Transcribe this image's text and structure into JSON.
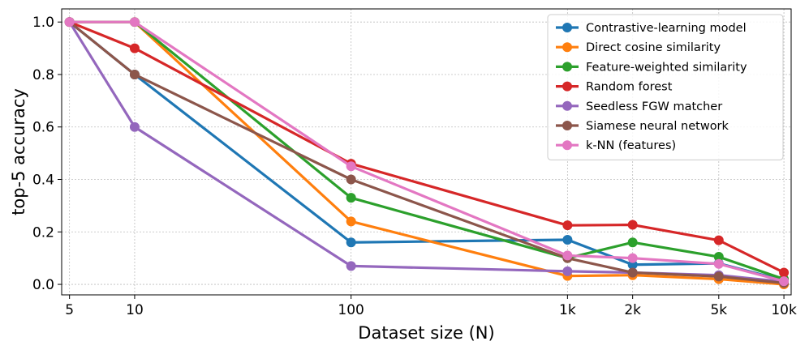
{
  "chart_data": {
    "type": "line",
    "title": "",
    "xlabel": "Dataset size (N)",
    "ylabel": "top-5 accuracy",
    "xscale": "log",
    "x": [
      5,
      10,
      100,
      1000,
      2000,
      5000,
      10000
    ],
    "xtick_labels": [
      "5",
      "10",
      "100",
      "1k",
      "2k",
      "5k",
      "10k"
    ],
    "ylim": [
      -0.04,
      1.05
    ],
    "yticks": [
      0.0,
      0.2,
      0.4,
      0.6,
      0.8,
      1.0
    ],
    "ytick_labels": [
      "0.0",
      "0.2",
      "0.4",
      "0.6",
      "0.8",
      "1.0"
    ],
    "grid": true,
    "legend_position": "top-right",
    "series": [
      {
        "name": "Contrastive-learning model",
        "color": "#1f77b4",
        "values": [
          1.0,
          0.8,
          0.16,
          0.17,
          0.075,
          0.08,
          0.015
        ]
      },
      {
        "name": "Direct cosine similarity",
        "color": "#ff7f0e",
        "values": [
          1.0,
          1.0,
          0.24,
          0.032,
          0.035,
          0.02,
          0.0
        ]
      },
      {
        "name": "Feature-weighted similarity",
        "color": "#2ca02c",
        "values": [
          1.0,
          1.0,
          0.33,
          0.1,
          0.16,
          0.105,
          0.02
        ]
      },
      {
        "name": "Random forest",
        "color": "#d62728",
        "values": [
          1.0,
          0.9,
          0.46,
          0.225,
          0.227,
          0.168,
          0.045
        ]
      },
      {
        "name": "Seedless FGW matcher",
        "color": "#9467bd",
        "values": [
          1.0,
          0.6,
          0.07,
          0.05,
          0.045,
          0.035,
          0.01
        ]
      },
      {
        "name": "Siamese neural network",
        "color": "#8c564b",
        "values": [
          1.0,
          0.8,
          0.4,
          0.1,
          0.045,
          0.03,
          0.005
        ]
      },
      {
        "name": "k-NN (features)",
        "color": "#e377c2",
        "values": [
          1.0,
          1.0,
          0.45,
          0.11,
          0.1,
          0.078,
          0.012
        ]
      }
    ]
  }
}
